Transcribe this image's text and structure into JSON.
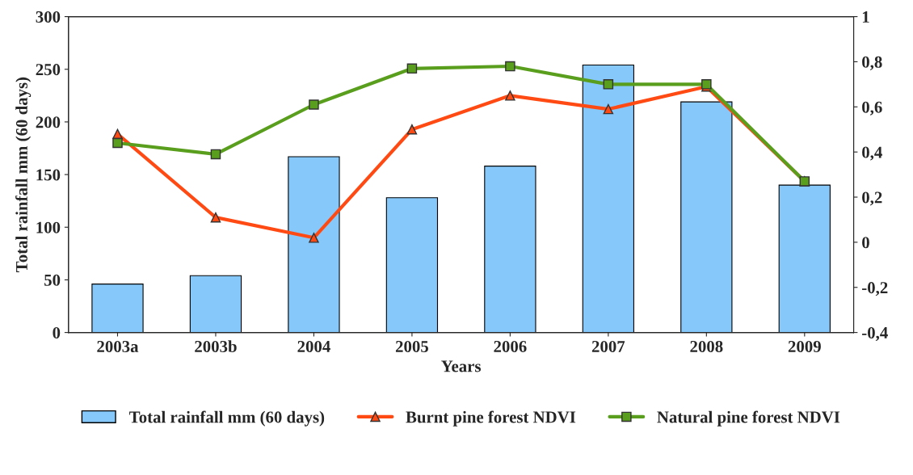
{
  "chart_data": {
    "type": "bar",
    "xlabel": "Years",
    "ylabel": "Total rainfall mm (60 days)",
    "categories": [
      "2003a",
      "2003b",
      "2004",
      "2005",
      "2006",
      "2007",
      "2008",
      "2009"
    ],
    "series": [
      {
        "name": "Total rainfall mm (60 days)",
        "color": "#87c8fa",
        "values": [
          46,
          54,
          167,
          128,
          158,
          254,
          219,
          140
        ]
      },
      {
        "name": "Burnt pine forest NDVI",
        "type": "line",
        "axis": "y2",
        "color": "#ff4a14",
        "marker": "triangle",
        "values": [
          0.48,
          0.11,
          0.02,
          0.5,
          0.65,
          0.59,
          0.69,
          0.27
        ]
      },
      {
        "name": "Natural pine forest NDVI",
        "type": "line",
        "axis": "y2",
        "color": "#5a9e1e",
        "marker": "square",
        "values": [
          0.44,
          0.39,
          0.61,
          0.77,
          0.78,
          0.7,
          0.7,
          0.27
        ]
      }
    ],
    "ylim": [
      0,
      300
    ],
    "yticks": [
      0,
      50,
      100,
      150,
      200,
      250,
      300
    ],
    "y2lim": [
      -0.4,
      1
    ],
    "y2ticks": [
      {
        "value": -0.4,
        "label": "-0,4"
      },
      {
        "value": -0.2,
        "label": "-0,2"
      },
      0,
      {
        "value": 0.2,
        "label": "0,2"
      },
      {
        "value": 0.4,
        "label": "0,4"
      },
      {
        "value": 0.6,
        "label": "0,6"
      },
      {
        "value": 0.8,
        "label": "0,8"
      },
      1
    ],
    "grid": false,
    "legend": "bottom"
  }
}
